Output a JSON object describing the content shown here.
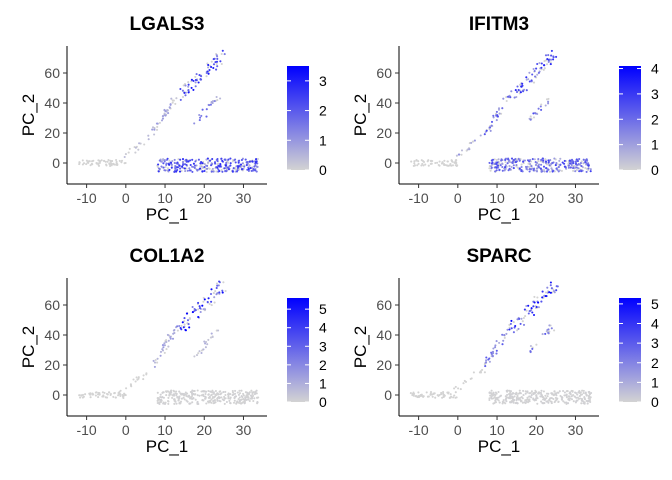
{
  "chart_data": [
    {
      "type": "scatter",
      "title": "LGALS3",
      "xlabel": "PC_1",
      "ylabel": "PC_2",
      "xlim": [
        -15,
        36
      ],
      "ylim": [
        -14,
        78
      ],
      "xticks": [
        -10,
        0,
        10,
        20,
        30
      ],
      "yticks": [
        0,
        20,
        40,
        60
      ],
      "legend": {
        "placement": "right",
        "min": 0,
        "max": 3.5,
        "ticks": [
          0,
          1,
          2,
          3
        ],
        "low_color": "#d3d3d3",
        "high_color": "#0000ff"
      },
      "clusters": [
        {
          "name": "left-cluster",
          "count": 60,
          "x_range": [
            -12,
            0
          ],
          "y_range": [
            -2,
            2
          ],
          "expression": 0.0
        },
        {
          "name": "main-band",
          "count": 320,
          "x_range": [
            8,
            34
          ],
          "y_range": [
            -6,
            3
          ],
          "expression": 1.7
        },
        {
          "name": "upper-arm",
          "count": 70,
          "x_range": [
            14,
            25
          ],
          "y_range": [
            45,
            73
          ],
          "expression": 1.9
        },
        {
          "name": "middle-arm",
          "count": 35,
          "x_range": [
            7,
            13
          ],
          "y_range": [
            20,
            45
          ],
          "expression": 0.6
        },
        {
          "name": "right-arm",
          "count": 20,
          "x_range": [
            18,
            24
          ],
          "y_range": [
            27,
            45
          ],
          "expression": 1.2
        },
        {
          "name": "bridge",
          "count": 15,
          "x_range": [
            -1,
            7
          ],
          "y_range": [
            3,
            18
          ],
          "expression": 0.3
        }
      ]
    },
    {
      "type": "scatter",
      "title": "IFITM3",
      "xlabel": "PC_1",
      "ylabel": "PC_2",
      "xlim": [
        -15,
        36
      ],
      "ylim": [
        -14,
        78
      ],
      "xticks": [
        -10,
        0,
        10,
        20,
        30
      ],
      "yticks": [
        0,
        20,
        40,
        60
      ],
      "legend": {
        "placement": "right",
        "min": 0,
        "max": 4.1,
        "ticks": [
          0,
          1,
          2,
          3,
          4
        ],
        "low_color": "#d3d3d3",
        "high_color": "#0000ff"
      },
      "clusters": [
        {
          "name": "left-cluster",
          "count": 60,
          "x_range": [
            -12,
            0
          ],
          "y_range": [
            -2,
            2
          ],
          "expression": 0.0
        },
        {
          "name": "main-band",
          "count": 320,
          "x_range": [
            8,
            34
          ],
          "y_range": [
            -6,
            3
          ],
          "expression": 1.7
        },
        {
          "name": "upper-arm",
          "count": 70,
          "x_range": [
            14,
            25
          ],
          "y_range": [
            45,
            73
          ],
          "expression": 2.0
        },
        {
          "name": "middle-arm",
          "count": 35,
          "x_range": [
            7,
            13
          ],
          "y_range": [
            20,
            45
          ],
          "expression": 1.6
        },
        {
          "name": "right-arm",
          "count": 20,
          "x_range": [
            18,
            24
          ],
          "y_range": [
            27,
            45
          ],
          "expression": 1.8
        },
        {
          "name": "bridge",
          "count": 15,
          "x_range": [
            -1,
            7
          ],
          "y_range": [
            3,
            18
          ],
          "expression": 0.8
        }
      ]
    },
    {
      "type": "scatter",
      "title": "COL1A2",
      "xlabel": "PC_1",
      "ylabel": "PC_2",
      "xlim": [
        -15,
        36
      ],
      "ylim": [
        -14,
        78
      ],
      "xticks": [
        -10,
        0,
        10,
        20,
        30
      ],
      "yticks": [
        0,
        20,
        40,
        60
      ],
      "legend": {
        "placement": "right",
        "min": 0,
        "max": 5.6,
        "ticks": [
          0,
          1,
          2,
          3,
          4,
          5
        ],
        "low_color": "#d3d3d3",
        "high_color": "#0000ff"
      },
      "clusters": [
        {
          "name": "left-cluster",
          "count": 60,
          "x_range": [
            -12,
            0
          ],
          "y_range": [
            -2,
            2
          ],
          "expression": 0.0
        },
        {
          "name": "main-band",
          "count": 320,
          "x_range": [
            8,
            34
          ],
          "y_range": [
            -6,
            3
          ],
          "expression": 0.05
        },
        {
          "name": "upper-arm",
          "count": 70,
          "x_range": [
            14,
            25
          ],
          "y_range": [
            45,
            73
          ],
          "expression": 3.6
        },
        {
          "name": "middle-arm",
          "count": 35,
          "x_range": [
            7,
            13
          ],
          "y_range": [
            20,
            45
          ],
          "expression": 1.0
        },
        {
          "name": "right-arm",
          "count": 20,
          "x_range": [
            18,
            24
          ],
          "y_range": [
            27,
            45
          ],
          "expression": 0.8
        },
        {
          "name": "bridge",
          "count": 15,
          "x_range": [
            -1,
            7
          ],
          "y_range": [
            3,
            18
          ],
          "expression": 0.0
        }
      ]
    },
    {
      "type": "scatter",
      "title": "SPARC",
      "xlabel": "PC_1",
      "ylabel": "PC_2",
      "xlim": [
        -15,
        36
      ],
      "ylim": [
        -14,
        78
      ],
      "xticks": [
        -10,
        0,
        10,
        20,
        30
      ],
      "yticks": [
        0,
        20,
        40,
        60
      ],
      "legend": {
        "placement": "right",
        "min": 0,
        "max": 5.3,
        "ticks": [
          0,
          1,
          2,
          3,
          4,
          5
        ],
        "low_color": "#d3d3d3",
        "high_color": "#0000ff"
      },
      "clusters": [
        {
          "name": "left-cluster",
          "count": 60,
          "x_range": [
            -12,
            0
          ],
          "y_range": [
            -2,
            2
          ],
          "expression": 0.0
        },
        {
          "name": "main-band",
          "count": 320,
          "x_range": [
            8,
            34
          ],
          "y_range": [
            -6,
            3
          ],
          "expression": 0.05
        },
        {
          "name": "upper-arm",
          "count": 70,
          "x_range": [
            14,
            25
          ],
          "y_range": [
            45,
            73
          ],
          "expression": 3.3
        },
        {
          "name": "middle-arm",
          "count": 35,
          "x_range": [
            7,
            13
          ],
          "y_range": [
            20,
            45
          ],
          "expression": 1.8
        },
        {
          "name": "right-arm",
          "count": 20,
          "x_range": [
            18,
            24
          ],
          "y_range": [
            27,
            45
          ],
          "expression": 2.0
        },
        {
          "name": "bridge",
          "count": 15,
          "x_range": [
            -1,
            7
          ],
          "y_range": [
            3,
            18
          ],
          "expression": 0.0
        }
      ]
    }
  ]
}
